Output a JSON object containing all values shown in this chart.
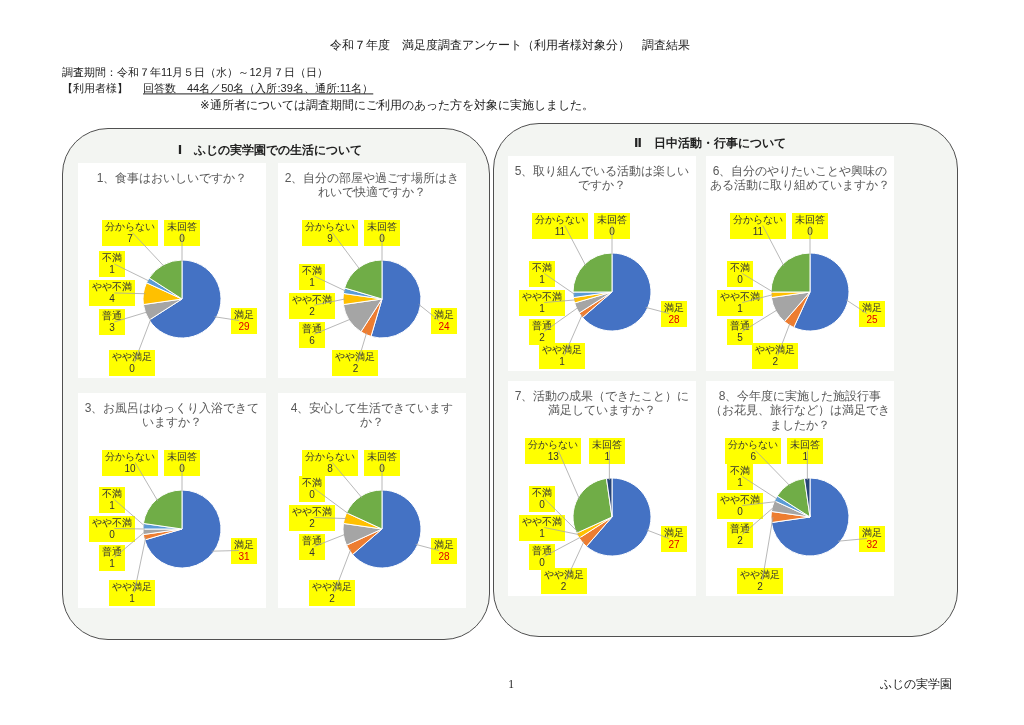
{
  "chart_data": [
    {
      "type": "other",
      "title": "令和７年度　満足度調査アンケート（利用者様対象分）　調査結果",
      "annotations": [
        "調査期間：令和７年11月５日（水）～12月７日（日）",
        "【利用者様】",
        "回答数　44名／50名（入所:39名、通所:11名）",
        "※通所者については調査期間にご利用のあった方を対象に実施しました。"
      ]
    },
    {
      "type": "other",
      "title": "Ⅰ　ふじの実学園での生活について"
    },
    {
      "type": "pie",
      "title": "1、食事はおいしいですか？",
      "categories": [
        "満足",
        "やや満足",
        "普通",
        "やや不満",
        "不満",
        "分からない",
        "未回答"
      ],
      "values": [
        29,
        0,
        3,
        4,
        1,
        7,
        0
      ],
      "value_labels": [
        "29",
        "0",
        "3",
        "4",
        "1",
        "7",
        "0"
      ],
      "colors": [
        "#4472c4",
        null,
        "#a5a5a5",
        "#ffc000",
        "#5b9bd5",
        "#70ad47",
        null
      ]
    },
    {
      "type": "pie",
      "title": "2、自分の部屋や過ごす場所はきれいで快適ですか？",
      "categories": [
        "満足",
        "やや満足",
        "普通",
        "やや不満",
        "不満",
        "分からない",
        "未回答"
      ],
      "values": [
        24,
        2,
        6,
        2,
        1,
        9,
        0
      ],
      "value_labels": [
        "24",
        "2",
        "6",
        "2",
        "1",
        "9",
        "0"
      ],
      "colors": [
        "#4472c4",
        "#ed7d31",
        "#a5a5a5",
        "#ffc000",
        "#5b9bd5",
        "#70ad47",
        null
      ]
    },
    {
      "type": "pie",
      "title": "3、お風呂はゆっくり入浴できていますか？",
      "categories": [
        "満足",
        "やや満足",
        "普通",
        "やや不満",
        "不満",
        "分からない",
        "未回答"
      ],
      "values": [
        31,
        1,
        1,
        0,
        1,
        10,
        0
      ],
      "value_labels": [
        "31",
        "1",
        "1",
        "0",
        "1",
        "10",
        "0"
      ],
      "colors": [
        "#4472c4",
        "#ed7d31",
        "#a5a5a5",
        null,
        "#5b9bd5",
        "#70ad47",
        null
      ]
    },
    {
      "type": "pie",
      "title": "4、安心して生活できていますか？",
      "categories": [
        "満足",
        "やや満足",
        "普通",
        "やや不満",
        "不満",
        "分からない",
        "未回答"
      ],
      "values": [
        28,
        2,
        4,
        2,
        0,
        8,
        0
      ],
      "value_labels": [
        "28",
        "2",
        "4",
        "2",
        "0",
        "8",
        "0"
      ],
      "colors": [
        "#4472c4",
        "#ed7d31",
        "#a5a5a5",
        "#ffc000",
        null,
        "#70ad47",
        null
      ]
    },
    {
      "type": "other",
      "title": "Ⅱ　日中活動・行事について"
    },
    {
      "type": "pie",
      "title": "5、取り組んでいる活動は楽しいですか？",
      "categories": [
        "満足",
        "やや満足",
        "普通",
        "やや不満",
        "不満",
        "分からない",
        "未回答"
      ],
      "values": [
        28,
        1,
        2,
        1,
        1,
        11,
        0
      ],
      "value_labels": [
        "28",
        "1",
        "2",
        "1",
        "1",
        "11",
        "0"
      ],
      "colors": [
        "#4472c4",
        "#ed7d31",
        "#a5a5a5",
        "#ffc000",
        "#5b9bd5",
        "#70ad47",
        null
      ]
    },
    {
      "type": "pie",
      "title": "6、自分のやりたいことや興味のある活動に取り組めていますか？",
      "categories": [
        "満足",
        "やや満足",
        "普通",
        "やや不満",
        "不満",
        "分からない",
        "未回答"
      ],
      "values": [
        25,
        2,
        5,
        1,
        0,
        11,
        0
      ],
      "value_labels": [
        "25",
        "2",
        "5",
        "1",
        "0",
        "11",
        "0"
      ],
      "colors": [
        "#4472c4",
        "#ed7d31",
        "#a5a5a5",
        "#ffc000",
        null,
        "#70ad47",
        null
      ]
    },
    {
      "type": "pie",
      "title": "7、活動の成果（できたこと）に満足していますか？",
      "categories": [
        "満足",
        "やや満足",
        "普通",
        "やや不満",
        "不満",
        "分からない",
        "未回答"
      ],
      "values": [
        27,
        2,
        0,
        1,
        0,
        13,
        1
      ],
      "value_labels": [
        "27",
        "2",
        "0",
        "1",
        "0",
        "13",
        "1"
      ],
      "colors": [
        "#4472c4",
        "#ed7d31",
        null,
        "#ffc000",
        null,
        "#70ad47",
        "#264478"
      ]
    },
    {
      "type": "pie",
      "title": "8、今年度に実施した施設行事（お花見、旅行など）は満足できましたか？",
      "categories": [
        "満足",
        "やや満足",
        "普通",
        "やや不満",
        "不満",
        "分からない",
        "未回答"
      ],
      "values": [
        32,
        2,
        2,
        0,
        1,
        6,
        1
      ],
      "value_labels": [
        "32",
        "2",
        "2",
        "0",
        "1",
        "6",
        "1"
      ],
      "colors": [
        "#4472c4",
        "#ed7d31",
        "#a5a5a5",
        null,
        "#5b9bd5",
        "#70ad47",
        "#264478"
      ]
    },
    {
      "type": "other",
      "annotations": [
        "1",
        "ふじの実学園"
      ]
    }
  ]
}
